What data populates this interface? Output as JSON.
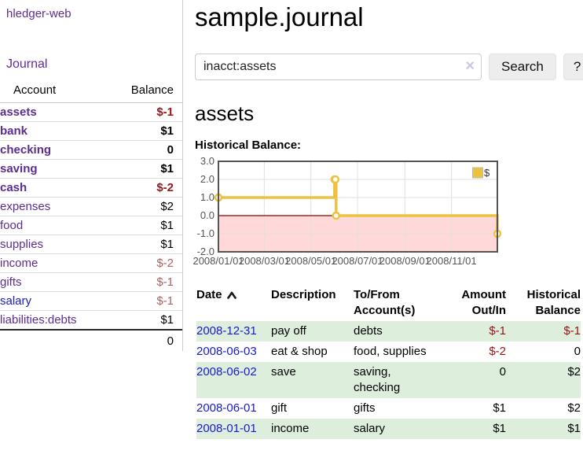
{
  "sidebar": {
    "app_title": "hledger-web",
    "nav": [
      {
        "label": "Journal"
      }
    ],
    "accounts_header": {
      "account": "Account",
      "balance": "Balance"
    },
    "accounts": [
      {
        "name": "assets",
        "level": 0,
        "bold": true,
        "link": "visited",
        "balance": "$-1",
        "bal_tone": "neg-strong"
      },
      {
        "name": "bank",
        "level": 1,
        "bold": true,
        "link": "visited",
        "balance": "$1",
        "bal_tone": "pos"
      },
      {
        "name": "checking",
        "level": 2,
        "bold": true,
        "link": "visited",
        "balance": "0",
        "bal_tone": "pos"
      },
      {
        "name": "saving",
        "level": 2,
        "bold": true,
        "link": "visited",
        "balance": "$1",
        "bal_tone": "pos"
      },
      {
        "name": "cash",
        "level": 1,
        "bold": true,
        "link": "visited",
        "balance": "$-2",
        "bal_tone": "neg-strong"
      },
      {
        "name": "expenses",
        "level": 0,
        "bold": false,
        "link": "visited",
        "balance": "$2",
        "bal_tone": "pos"
      },
      {
        "name": "food",
        "level": 1,
        "bold": false,
        "link": "visited",
        "balance": "$1",
        "bal_tone": "pos"
      },
      {
        "name": "supplies",
        "level": 1,
        "bold": false,
        "link": "visited",
        "balance": "$1",
        "bal_tone": "pos"
      },
      {
        "name": "income",
        "level": 0,
        "bold": false,
        "link": "visited",
        "balance": "$-2",
        "bal_tone": "neg-soft"
      },
      {
        "name": "gifts",
        "level": 1,
        "bold": false,
        "link": "visited",
        "balance": "$-1",
        "bal_tone": "neg-soft"
      },
      {
        "name": "salary",
        "level": 1,
        "bold": false,
        "link": "new",
        "balance": "$-1",
        "bal_tone": "neg-soft"
      },
      {
        "name": "liabilities:debts",
        "level": 0,
        "bold": false,
        "link": "visited",
        "balance": "$1",
        "bal_tone": "pos"
      }
    ],
    "total": "0"
  },
  "main": {
    "title": "sample.journal",
    "search": {
      "value": "inacct:assets",
      "clear_icon": "×",
      "button_label": "Search",
      "help_label": "?"
    },
    "account_heading": "assets",
    "chart_label": "Historical Balance:"
  },
  "chart_data": {
    "type": "line",
    "step": true,
    "title": "Historical Balance:",
    "series": [
      {
        "name": "$",
        "color": "#edc240",
        "points": [
          [
            "2008-01-01",
            1
          ],
          [
            "2008-06-01",
            2
          ],
          [
            "2008-06-02",
            2
          ],
          [
            "2008-06-03",
            0
          ],
          [
            "2008-12-31",
            -1
          ]
        ]
      }
    ],
    "x_range": [
      "2008-01-01",
      "2008-12-31"
    ],
    "x_ticks": [
      {
        "date": "2008-01-01",
        "label": "2008/01/01"
      },
      {
        "date": "2008-03-01",
        "label": "2008/03/01"
      },
      {
        "date": "2008-05-01",
        "label": "2008/05/01"
      },
      {
        "date": "2008-07-01",
        "label": "2008/07/01"
      },
      {
        "date": "2008-09-01",
        "label": "2008/09/01"
      },
      {
        "date": "2008-11-01",
        "label": "2008/11/01"
      }
    ],
    "y_ticks": [
      {
        "v": 3,
        "label": "3.0"
      },
      {
        "v": 2,
        "label": "2.0"
      },
      {
        "v": 1,
        "label": "1.0"
      },
      {
        "v": 0,
        "label": "0.0"
      },
      {
        "v": -1,
        "label": "-1.0"
      },
      {
        "v": -2,
        "label": "-2.0"
      }
    ],
    "ylim": [
      -2,
      3
    ],
    "grid": true,
    "legend": {
      "label": "$",
      "position": "top-right"
    },
    "zero_line_color": "#8b0000",
    "negative_fill": "rgba(255,120,120,0.28)"
  },
  "register": {
    "headers": [
      "Date",
      "Description",
      "To/From Account(s)",
      "Amount Out/In",
      "Historical Balance"
    ],
    "rows": [
      {
        "date": "2008-12-31",
        "description": "pay off",
        "accounts": "debts",
        "amount": "$-1",
        "amount_neg": true,
        "balance": "$-1",
        "balance_neg": true
      },
      {
        "date": "2008-06-03",
        "description": "eat & shop",
        "accounts": "food, supplies",
        "amount": "$-2",
        "amount_neg": true,
        "balance": "0",
        "balance_neg": false
      },
      {
        "date": "2008-06-02",
        "description": "save",
        "accounts": "saving, checking",
        "amount": "0",
        "amount_neg": false,
        "balance": "$2",
        "balance_neg": false
      },
      {
        "date": "2008-06-01",
        "description": "gift",
        "accounts": "gifts",
        "amount": "$1",
        "amount_neg": false,
        "balance": "$2",
        "balance_neg": false
      },
      {
        "date": "2008-01-01",
        "description": "income",
        "accounts": "salary",
        "amount": "$1",
        "amount_neg": false,
        "balance": "$1",
        "balance_neg": false
      }
    ]
  }
}
